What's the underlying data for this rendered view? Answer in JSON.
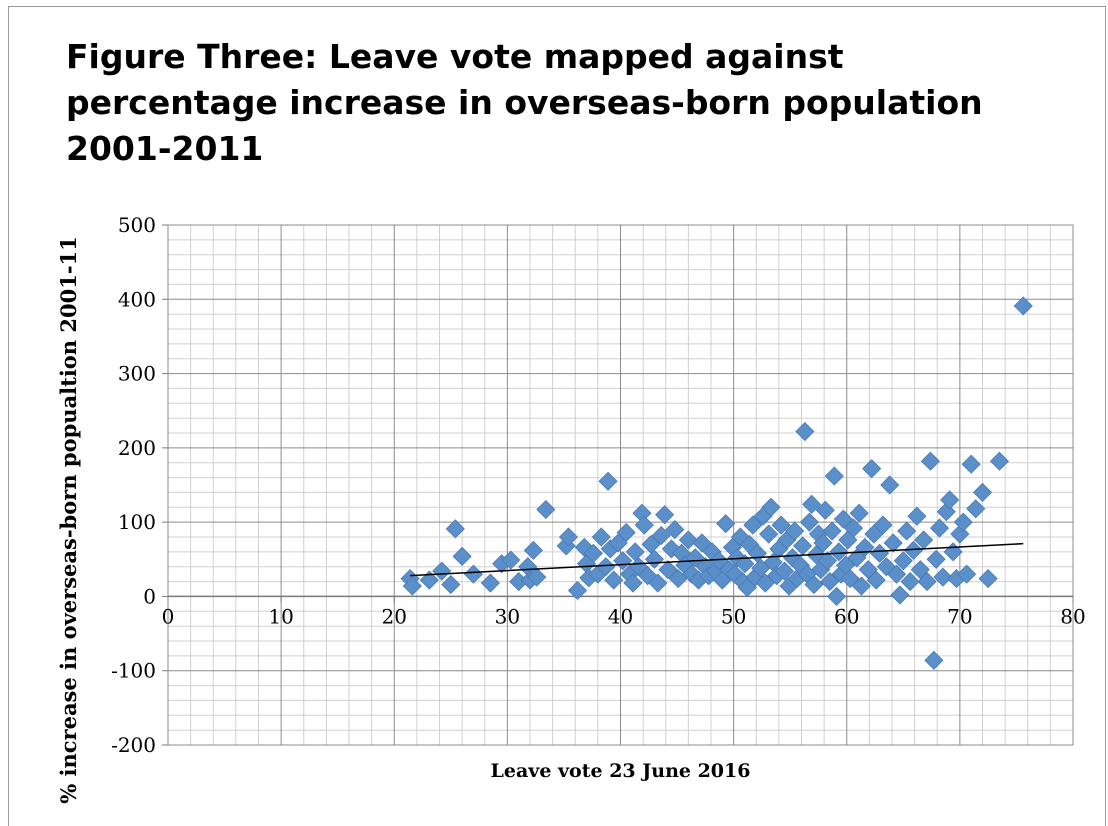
{
  "chart_data": {
    "type": "scatter",
    "title": "Figure Three: Leave vote mapped against percentage increase in overseas-born population 2001-2011",
    "xlabel": "Leave vote 23 June 2016",
    "ylabel": "% increase in overseas-born popualtion 2001-11",
    "xlim": [
      0,
      80
    ],
    "ylim": [
      -200,
      500
    ],
    "x_ticks": [
      "0",
      "10",
      "20",
      "30",
      "40",
      "50",
      "60",
      "70",
      "80"
    ],
    "y_ticks": [
      "500",
      "400",
      "300",
      "200",
      "100",
      "0",
      "-100",
      "-200"
    ],
    "grid": true,
    "legend": "none",
    "marker_color": "#5b8fc9",
    "trendline": {
      "x": [
        21.4,
        75.6
      ],
      "y": [
        28,
        71
      ],
      "color": "#000000"
    },
    "series": [
      {
        "points": [
          [
            21.4,
            24
          ],
          [
            21.6,
            14
          ],
          [
            23.1,
            22
          ],
          [
            24.2,
            34
          ],
          [
            25,
            16
          ],
          [
            25.4,
            91
          ],
          [
            26,
            54
          ],
          [
            27,
            30
          ],
          [
            28.5,
            18
          ],
          [
            29.5,
            44
          ],
          [
            30.3,
            49
          ],
          [
            31,
            20
          ],
          [
            31.8,
            40
          ],
          [
            32,
            22
          ],
          [
            32.3,
            62
          ],
          [
            32.6,
            26
          ],
          [
            33.4,
            117
          ],
          [
            35.2,
            68
          ],
          [
            35.4,
            80
          ],
          [
            36.2,
            8
          ],
          [
            36.8,
            66
          ],
          [
            37,
            44
          ],
          [
            37.2,
            25
          ],
          [
            37.6,
            58
          ],
          [
            38,
            30
          ],
          [
            38.3,
            80
          ],
          [
            38.7,
            40
          ],
          [
            38.9,
            155
          ],
          [
            39.1,
            64
          ],
          [
            39.4,
            22
          ],
          [
            39.8,
            72
          ],
          [
            40.2,
            48
          ],
          [
            40.5,
            86
          ],
          [
            40.8,
            30
          ],
          [
            41.1,
            18
          ],
          [
            41.3,
            60
          ],
          [
            41.6,
            40
          ],
          [
            41.9,
            112
          ],
          [
            42.1,
            96
          ],
          [
            42.4,
            28
          ],
          [
            42.7,
            70
          ],
          [
            43,
            50
          ],
          [
            43.3,
            18
          ],
          [
            43.6,
            82
          ],
          [
            43.9,
            110
          ],
          [
            44.2,
            36
          ],
          [
            44.5,
            64
          ],
          [
            44.8,
            90
          ],
          [
            45.1,
            24
          ],
          [
            45.4,
            58
          ],
          [
            45.7,
            42
          ],
          [
            46,
            76
          ],
          [
            46.3,
            30
          ],
          [
            46.6,
            52
          ],
          [
            46.9,
            22
          ],
          [
            47.2,
            72
          ],
          [
            47.5,
            40
          ],
          [
            47.8,
            28
          ],
          [
            48.1,
            60
          ],
          [
            48.4,
            34
          ],
          [
            48.7,
            48
          ],
          [
            49,
            22
          ],
          [
            49.3,
            98
          ],
          [
            49.6,
            36
          ],
          [
            49.9,
            66
          ],
          [
            50.1,
            30
          ],
          [
            50.3,
            52
          ],
          [
            50.6,
            80
          ],
          [
            50.8,
            20
          ],
          [
            51,
            44
          ],
          [
            51.2,
            12
          ],
          [
            51.4,
            70
          ],
          [
            51.7,
            96
          ],
          [
            51.9,
            26
          ],
          [
            52.1,
            58
          ],
          [
            52.4,
            38
          ],
          [
            52.6,
            108
          ],
          [
            52.8,
            18
          ],
          [
            53.1,
            84
          ],
          [
            53.3,
            120
          ],
          [
            53.5,
            46
          ],
          [
            53.8,
            28
          ],
          [
            54,
            64
          ],
          [
            54.2,
            96
          ],
          [
            54.5,
            34
          ],
          [
            54.7,
            76
          ],
          [
            54.9,
            14
          ],
          [
            55.2,
            52
          ],
          [
            55.4,
            88
          ],
          [
            55.6,
            24
          ],
          [
            55.9,
            42
          ],
          [
            56.1,
            68
          ],
          [
            56.3,
            222
          ],
          [
            56.5,
            30
          ],
          [
            56.7,
            100
          ],
          [
            56.9,
            124
          ],
          [
            57.1,
            16
          ],
          [
            57.3,
            56
          ],
          [
            57.5,
            84
          ],
          [
            57.7,
            36
          ],
          [
            57.9,
            72
          ],
          [
            58.1,
            116
          ],
          [
            58.3,
            48
          ],
          [
            58.5,
            20
          ],
          [
            58.7,
            88
          ],
          [
            58.9,
            162
          ],
          [
            59.1,
            0
          ],
          [
            59.3,
            60
          ],
          [
            59.5,
            30
          ],
          [
            59.7,
            104
          ],
          [
            59.9,
            42
          ],
          [
            60.1,
            76
          ],
          [
            60.3,
            24
          ],
          [
            60.6,
            92
          ],
          [
            60.9,
            52
          ],
          [
            61.1,
            112
          ],
          [
            61.3,
            14
          ],
          [
            61.6,
            66
          ],
          [
            61.9,
            36
          ],
          [
            62.2,
            172
          ],
          [
            62.4,
            84
          ],
          [
            62.6,
            22
          ],
          [
            62.9,
            58
          ],
          [
            63.2,
            96
          ],
          [
            63.5,
            40
          ],
          [
            63.8,
            150
          ],
          [
            64.1,
            72
          ],
          [
            64.4,
            30
          ],
          [
            64.7,
            2
          ],
          [
            65,
            48
          ],
          [
            65.3,
            88
          ],
          [
            65.6,
            20
          ],
          [
            65.9,
            62
          ],
          [
            66.2,
            108
          ],
          [
            66.5,
            36
          ],
          [
            66.8,
            76
          ],
          [
            67.1,
            20
          ],
          [
            67.4,
            182
          ],
          [
            67.7,
            -86
          ],
          [
            67.9,
            50
          ],
          [
            68.2,
            92
          ],
          [
            68.5,
            26
          ],
          [
            68.8,
            114
          ],
          [
            69.1,
            130
          ],
          [
            69.4,
            60
          ],
          [
            69.7,
            24
          ],
          [
            70,
            84
          ],
          [
            70.3,
            100
          ],
          [
            70.6,
            30
          ],
          [
            71,
            178
          ],
          [
            71.4,
            118
          ],
          [
            72,
            140
          ],
          [
            72.5,
            24
          ],
          [
            73.5,
            182
          ],
          [
            75.6,
            391
          ]
        ]
      }
    ]
  }
}
